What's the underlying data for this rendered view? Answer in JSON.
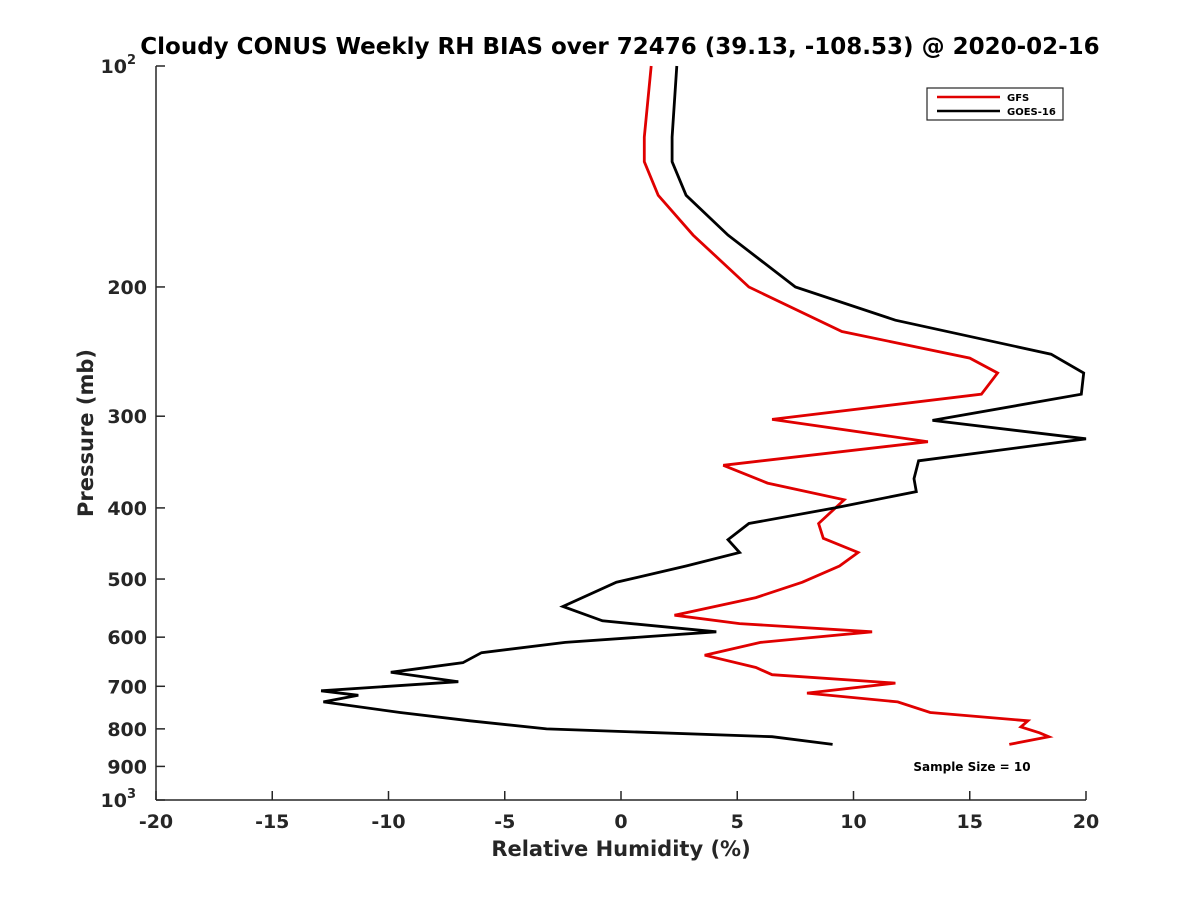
{
  "chart_data": {
    "type": "line",
    "title": "Cloudy CONUS Weekly RH BIAS over 72476 (39.13, -108.53) @ 2020-02-16",
    "xlabel": "Relative Humidity (%)",
    "ylabel": "Pressure (mb)",
    "xlim": [
      -20,
      20
    ],
    "ylim": [
      1000,
      100
    ],
    "y_scale": "log",
    "y_reversed": true,
    "grid": false,
    "legend_position": "top-right",
    "annotation": "Sample Size = 10",
    "x_ticks": [
      "-20",
      "-15",
      "-10",
      "-5",
      "0",
      "5",
      "10",
      "15",
      "20"
    ],
    "x_tick_values": [
      -20,
      -15,
      -10,
      -5,
      0,
      5,
      10,
      15,
      20
    ],
    "y_ticks": [
      {
        "value": 100,
        "base": "10",
        "exp": "2"
      },
      {
        "value": 200,
        "base": "200",
        "exp": ""
      },
      {
        "value": 300,
        "base": "300",
        "exp": ""
      },
      {
        "value": 400,
        "base": "400",
        "exp": ""
      },
      {
        "value": 500,
        "base": "500",
        "exp": ""
      },
      {
        "value": 600,
        "base": "600",
        "exp": ""
      },
      {
        "value": 700,
        "base": "700",
        "exp": ""
      },
      {
        "value": 800,
        "base": "800",
        "exp": ""
      },
      {
        "value": 900,
        "base": "900",
        "exp": ""
      },
      {
        "value": 1000,
        "base": "10",
        "exp": "3"
      }
    ],
    "series": [
      {
        "name": "GFS",
        "color": "#e00000",
        "points": [
          [
            1.3,
            100
          ],
          [
            1.0,
            125
          ],
          [
            1.0,
            135
          ],
          [
            1.6,
            150
          ],
          [
            3.1,
            170
          ],
          [
            5.5,
            200
          ],
          [
            9.5,
            230
          ],
          [
            15.0,
            250
          ],
          [
            16.2,
            262
          ],
          [
            15.5,
            280
          ],
          [
            6.5,
            303
          ],
          [
            13.2,
            325
          ],
          [
            4.4,
            350
          ],
          [
            6.3,
            370
          ],
          [
            9.6,
            390
          ],
          [
            8.5,
            420
          ],
          [
            8.7,
            440
          ],
          [
            10.2,
            460
          ],
          [
            9.4,
            480
          ],
          [
            7.8,
            505
          ],
          [
            5.8,
            530
          ],
          [
            2.3,
            560
          ],
          [
            5.1,
            575
          ],
          [
            10.8,
            590
          ],
          [
            6.0,
            610
          ],
          [
            3.6,
            635
          ],
          [
            5.8,
            660
          ],
          [
            6.5,
            675
          ],
          [
            11.8,
            693
          ],
          [
            8.0,
            715
          ],
          [
            11.9,
            735
          ],
          [
            13.3,
            760
          ],
          [
            17.5,
            780
          ],
          [
            17.2,
            795
          ],
          [
            18.0,
            810
          ],
          [
            18.4,
            820
          ],
          [
            16.7,
            840
          ]
        ]
      },
      {
        "name": "GOES-16",
        "color": "#000000",
        "points": [
          [
            2.4,
            100
          ],
          [
            2.2,
            125
          ],
          [
            2.2,
            135
          ],
          [
            2.8,
            150
          ],
          [
            4.6,
            170
          ],
          [
            7.5,
            200
          ],
          [
            11.8,
            222
          ],
          [
            18.5,
            247
          ],
          [
            19.9,
            262
          ],
          [
            19.8,
            280
          ],
          [
            13.4,
            304
          ],
          [
            20.0,
            322
          ],
          [
            12.8,
            345
          ],
          [
            12.6,
            365
          ],
          [
            12.7,
            380
          ],
          [
            9.2,
            400
          ],
          [
            5.5,
            420
          ],
          [
            4.6,
            442
          ],
          [
            5.1,
            460
          ],
          [
            2.8,
            480
          ],
          [
            -0.2,
            505
          ],
          [
            -2.5,
            545
          ],
          [
            -0.8,
            570
          ],
          [
            4.1,
            590
          ],
          [
            -2.4,
            610
          ],
          [
            -6.0,
            630
          ],
          [
            -6.8,
            650
          ],
          [
            -9.9,
            670
          ],
          [
            -7.0,
            690
          ],
          [
            -12.9,
            710
          ],
          [
            -11.3,
            720
          ],
          [
            -12.8,
            735
          ],
          [
            -9.5,
            760
          ],
          [
            -6.5,
            780
          ],
          [
            -3.2,
            800
          ],
          [
            6.5,
            820
          ],
          [
            9.1,
            840
          ]
        ]
      }
    ]
  }
}
